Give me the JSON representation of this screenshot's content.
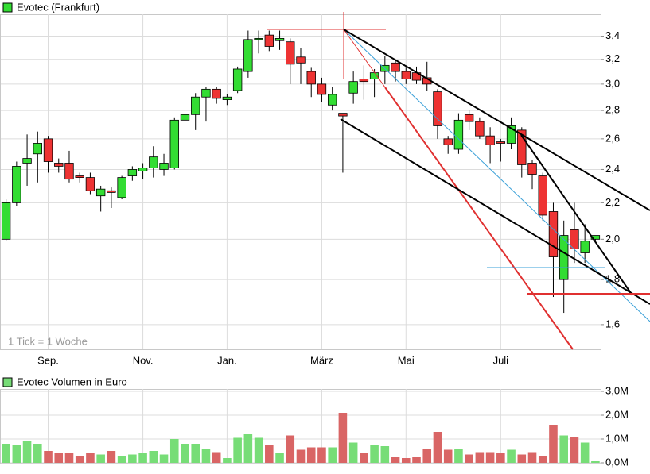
{
  "chart_data": [
    {
      "type": "candlestick",
      "name": "Evotec (Frankfurt)",
      "annotation": "1 Tick = 1 Woche",
      "categories": [
        null,
        null,
        null,
        null,
        "Sep.",
        null,
        null,
        null,
        null,
        null,
        null,
        null,
        null,
        "Nov.",
        null,
        null,
        null,
        null,
        null,
        null,
        null,
        "Jan.",
        null,
        null,
        null,
        null,
        null,
        null,
        null,
        null,
        "März",
        null,
        null,
        null,
        null,
        null,
        null,
        null,
        "Mai",
        null,
        null,
        null,
        null,
        null,
        null,
        null,
        null,
        "Juli",
        null,
        null,
        null,
        null,
        null,
        null,
        null,
        null,
        null
      ],
      "open": [
        2.0,
        2.2,
        2.44,
        2.5,
        2.6,
        2.44,
        2.44,
        2.36,
        2.35,
        2.24,
        2.27,
        2.23,
        2.36,
        2.39,
        2.41,
        2.4,
        2.41,
        2.73,
        2.77,
        2.9,
        2.96,
        2.88,
        2.95,
        3.1,
        3.37,
        3.41,
        3.36,
        3.35,
        3.22,
        3.1,
        3.0,
        2.84,
        2.78,
        2.93,
        3.04,
        3.04,
        3.1,
        3.17,
        3.1,
        3.09,
        3.05,
        2.94,
        2.6,
        2.53,
        2.77,
        2.72,
        2.62,
        2.58,
        2.57,
        2.66,
        2.44,
        2.36,
        2.15,
        1.8,
        2.05,
        1.93,
        2.0
      ],
      "high": [
        2.22,
        2.45,
        2.63,
        2.65,
        2.62,
        2.47,
        2.52,
        2.38,
        2.38,
        2.3,
        2.29,
        2.36,
        2.42,
        2.44,
        2.55,
        2.5,
        2.75,
        2.8,
        2.93,
        2.98,
        2.98,
        2.92,
        3.14,
        3.45,
        3.45,
        3.45,
        3.45,
        3.38,
        3.3,
        3.13,
        3.05,
        2.98,
        2.78,
        3.1,
        3.15,
        3.12,
        3.23,
        3.2,
        3.15,
        3.14,
        3.18,
        2.96,
        2.62,
        2.78,
        2.8,
        2.75,
        2.68,
        2.6,
        2.75,
        2.68,
        2.46,
        2.38,
        2.2,
        2.1,
        2.2,
        2.08,
        2.02
      ],
      "low": [
        1.99,
        2.18,
        2.3,
        2.32,
        2.38,
        2.38,
        2.32,
        2.32,
        2.25,
        2.15,
        2.17,
        2.22,
        2.33,
        2.34,
        2.35,
        2.36,
        2.4,
        2.66,
        2.66,
        2.72,
        2.85,
        2.84,
        2.93,
        3.05,
        3.25,
        3.27,
        3.28,
        3.0,
        3.0,
        2.9,
        2.86,
        2.8,
        2.38,
        2.85,
        2.88,
        2.9,
        3.0,
        3.02,
        3.0,
        3.0,
        2.95,
        2.6,
        2.5,
        2.5,
        2.66,
        2.6,
        2.44,
        2.45,
        2.53,
        2.35,
        2.28,
        2.1,
        1.72,
        1.65,
        1.88,
        1.88,
        1.98
      ],
      "close": [
        2.2,
        2.42,
        2.47,
        2.57,
        2.45,
        2.42,
        2.34,
        2.35,
        2.27,
        2.28,
        2.26,
        2.35,
        2.4,
        2.41,
        2.48,
        2.44,
        2.73,
        2.77,
        2.9,
        2.96,
        2.89,
        2.9,
        3.12,
        3.37,
        3.38,
        3.31,
        3.38,
        3.16,
        3.17,
        3.0,
        2.92,
        2.92,
        2.76,
        3.02,
        3.02,
        3.09,
        3.15,
        3.1,
        3.04,
        3.03,
        3.0,
        2.69,
        2.56,
        2.73,
        2.72,
        2.62,
        2.56,
        2.57,
        2.69,
        2.43,
        2.37,
        2.13,
        1.91,
        2.02,
        1.95,
        1.99,
        2.02
      ],
      "up_color": "#33dd33",
      "down_color": "#ee3333",
      "ylim": [
        1.5,
        3.6
      ],
      "log_scale": true,
      "grid": true,
      "yticks": [
        {
          "value": 1.6,
          "label": "1,6"
        },
        {
          "value": 1.8,
          "label": "1,8"
        },
        {
          "value": 2.0,
          "label": "2,0"
        },
        {
          "value": 2.2,
          "label": "2,2"
        },
        {
          "value": 2.4,
          "label": "2,4"
        },
        {
          "value": 2.6,
          "label": "2,6"
        },
        {
          "value": 2.8,
          "label": "2,8"
        },
        {
          "value": 3.0,
          "label": "3,0"
        },
        {
          "value": 3.2,
          "label": "3,2"
        },
        {
          "value": 3.4,
          "label": "3,4"
        }
      ]
    },
    {
      "type": "bar",
      "name": "Evotec Volumen in Euro",
      "values": [
        800000,
        750000,
        900000,
        800000,
        500000,
        400000,
        400000,
        300000,
        400000,
        350000,
        500000,
        300000,
        350000,
        400000,
        500000,
        350000,
        1000000,
        800000,
        800000,
        600000,
        450000,
        200000,
        1050000,
        1200000,
        1050000,
        750000,
        400000,
        1150000,
        550000,
        650000,
        650000,
        650000,
        2100000,
        850000,
        400000,
        750000,
        700000,
        250000,
        200000,
        250000,
        600000,
        1300000,
        550000,
        600000,
        350000,
        450000,
        450000,
        400000,
        550000,
        350000,
        450000,
        300000,
        1600000,
        1150000,
        1100000,
        850000,
        100000
      ],
      "up_color": "#77dd77",
      "down_color": "#d96565",
      "ylim": [
        0,
        3100000
      ],
      "grid": true,
      "yticks": [
        {
          "value": 0,
          "label": "0,0M"
        },
        {
          "value": 1000000,
          "label": "1,0M"
        },
        {
          "value": 2000000,
          "label": "2,0M"
        },
        {
          "value": 3000000,
          "label": "3,0M"
        }
      ]
    }
  ]
}
